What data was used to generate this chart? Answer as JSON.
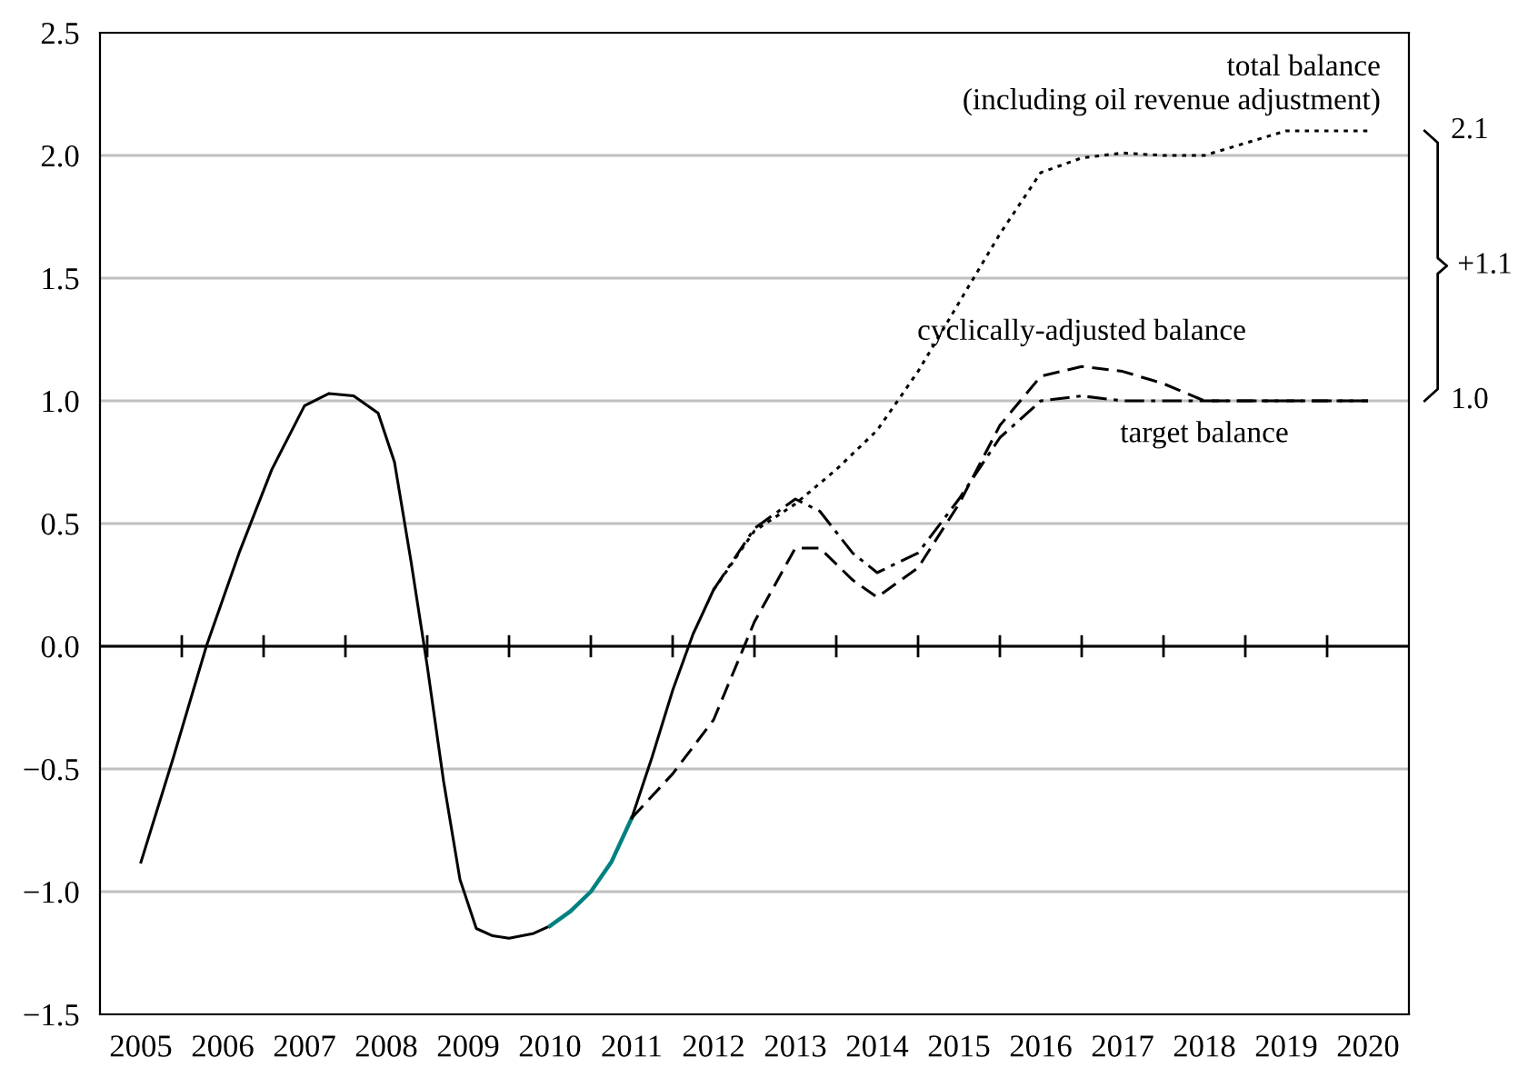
{
  "chart_data": {
    "type": "line",
    "xlim": [
      2004.5,
      2020.5
    ],
    "xticks": [
      2005,
      2006,
      2007,
      2008,
      2009,
      2010,
      2011,
      2012,
      2013,
      2014,
      2015,
      2016,
      2017,
      2018,
      2019,
      2020
    ],
    "ylim": [
      -1.5,
      2.5
    ],
    "yticks": [
      {
        "value": -1.5,
        "label": "−1.5"
      },
      {
        "value": -1.0,
        "label": "−1.0"
      },
      {
        "value": -0.5,
        "label": "−0.5"
      },
      {
        "value": 0,
        "label": "0.0"
      },
      {
        "value": 0.5,
        "label": "0.5"
      },
      {
        "value": 1.0,
        "label": "1.0"
      },
      {
        "value": 1.5,
        "label": "1.5"
      },
      {
        "value": 2.0,
        "label": "2.0"
      },
      {
        "value": 2.5,
        "label": "2.5"
      }
    ],
    "grid": "y",
    "ref_lines": [
      {
        "axis": "y",
        "value": 0,
        "color": "#000000"
      }
    ],
    "series": [
      {
        "color": "#000000",
        "line_style": "solid",
        "x": [
          2005,
          2005.4,
          2005.8,
          2006.2,
          2006.6,
          2007,
          2007.3,
          2007.6,
          2007.9,
          2008.1,
          2008.3,
          2008.5,
          2008.7,
          2008.9,
          2009.1,
          2009.3,
          2009.5,
          2009.8,
          2010
        ],
        "values": [
          -0.88,
          -0.45,
          0.0,
          0.38,
          0.72,
          0.98,
          1.03,
          1.02,
          0.95,
          0.75,
          0.35,
          -0.08,
          -0.55,
          -0.95,
          -1.15,
          -1.18,
          -1.19,
          -1.17,
          -1.14
        ]
      },
      {
        "color": "#008080",
        "line_style": "solid",
        "x": [
          2010,
          2010.25,
          2010.5,
          2010.75,
          2011
        ],
        "values": [
          -1.14,
          -1.08,
          -1.0,
          -0.88,
          -0.7
        ]
      },
      {
        "color": "#000000",
        "line_style": "solid",
        "x": [
          2011,
          2011.25,
          2011.5,
          2011.75,
          2012
        ],
        "values": [
          -0.7,
          -0.45,
          -0.18,
          0.05,
          0.23
        ]
      },
      {
        "color": "#000000",
        "line_style": "dotted",
        "x": [
          2012,
          2012.5,
          2013,
          2013.5,
          2014,
          2014.5,
          2015,
          2015.5,
          2016,
          2016.5,
          2017,
          2017.5,
          2018,
          2018.5,
          2019,
          2019.5,
          2020
        ],
        "values": [
          0.23,
          0.47,
          0.58,
          0.72,
          0.88,
          1.12,
          1.4,
          1.68,
          1.93,
          1.99,
          2.01,
          2.0,
          2.0,
          2.05,
          2.1,
          2.1,
          2.1
        ]
      },
      {
        "color": "#000000",
        "line_style": "dashdot",
        "x": [
          2012,
          2012.5,
          2013,
          2013.3,
          2013.7,
          2014,
          2014.5,
          2015,
          2015.5,
          2016,
          2016.5,
          2017,
          2018,
          2019,
          2020
        ],
        "values": [
          0.23,
          0.48,
          0.6,
          0.55,
          0.38,
          0.3,
          0.38,
          0.6,
          0.85,
          1.0,
          1.02,
          1.0,
          1.0,
          1.0,
          1.0
        ]
      },
      {
        "color": "#000000",
        "line_style": "dashed",
        "x": [
          2011,
          2011.5,
          2012,
          2012.5,
          2013,
          2013.3,
          2013.7,
          2014,
          2014.5,
          2015,
          2015.5,
          2016,
          2016.5,
          2017,
          2017.5,
          2018,
          2019,
          2020
        ],
        "values": [
          -0.7,
          -0.52,
          -0.3,
          0.1,
          0.4,
          0.4,
          0.27,
          0.2,
          0.32,
          0.58,
          0.9,
          1.1,
          1.14,
          1.12,
          1.07,
          1.0,
          1.0,
          1.0
        ]
      }
    ],
    "annotations": [
      {
        "text": "total balance\n(including oil revenue adjustment)",
        "x": 2020,
        "y": 2.1
      },
      {
        "text": "cyclically-adjusted balance",
        "x": 2016.5,
        "y": 1.14
      },
      {
        "text": "target balance",
        "x": 2018,
        "y": 1.0
      },
      "2.1",
      "1.0",
      "+1.1"
    ]
  }
}
